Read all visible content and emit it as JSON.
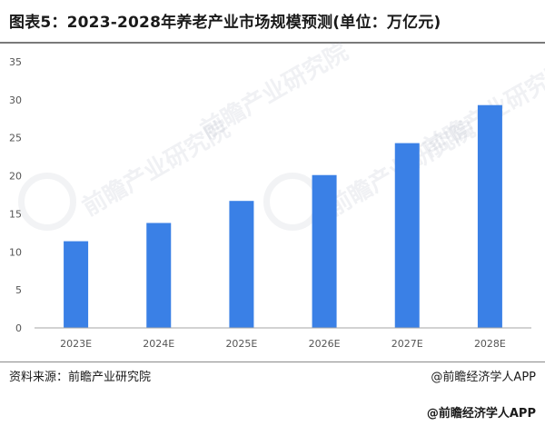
{
  "title": "图表5：2023-2028年养老产业市场规模预测(单位：万亿元)",
  "source": "资料来源：前瞻产业研究院",
  "credit": "@前瞻经济学人APP",
  "credit_footer": "@前瞻经济学人APP",
  "watermark": "前瞻产业研究院",
  "colors": {
    "bar": "#3a80e6",
    "axis": "#a6a6a6"
  },
  "chart_data": {
    "type": "bar",
    "categories": [
      "2023E",
      "2024E",
      "2025E",
      "2026E",
      "2027E",
      "2028E"
    ],
    "values": [
      11.4,
      13.8,
      16.7,
      20.1,
      24.3,
      29.3
    ],
    "yticks": [
      0,
      5,
      10,
      15,
      20,
      25,
      30,
      35
    ],
    "ylim": [
      0,
      35
    ],
    "grid": false,
    "legend": "none"
  }
}
